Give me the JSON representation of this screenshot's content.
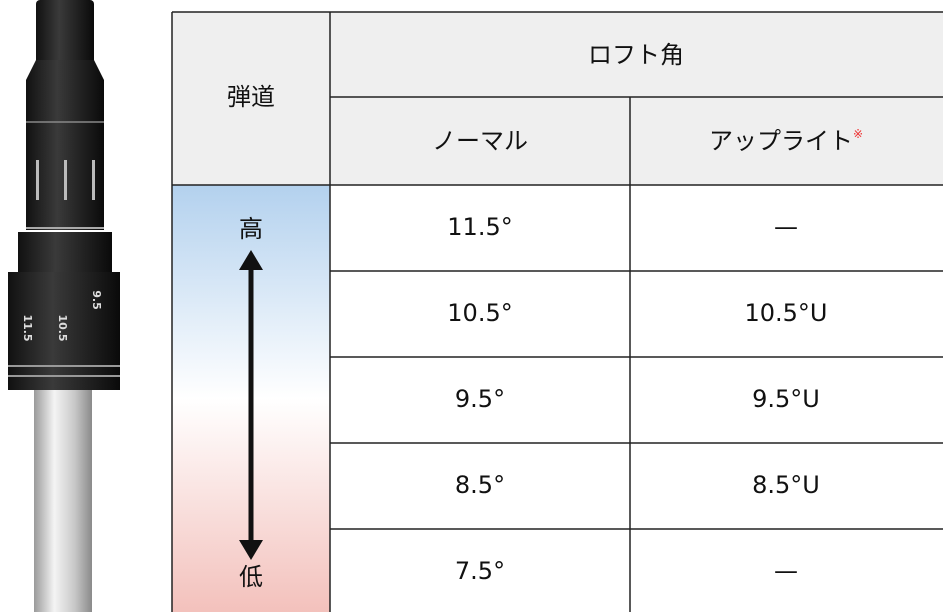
{
  "header": {
    "trajectory": "弾道",
    "loft": "ロフト角",
    "normal": "ノーマル",
    "upright": "アップライト",
    "note_mark": "※"
  },
  "trajectory": {
    "high": "高",
    "low": "低"
  },
  "table": {
    "rows": [
      [
        "11.5°",
        "—"
      ],
      [
        "10.5°",
        "10.5°U"
      ],
      [
        "9.5°",
        "9.5°U"
      ],
      [
        "8.5°",
        "8.5°U"
      ],
      [
        "7.5°",
        "—"
      ]
    ]
  },
  "sleeve_labels": [
    "11.5",
    "10.5",
    "9.5"
  ]
}
